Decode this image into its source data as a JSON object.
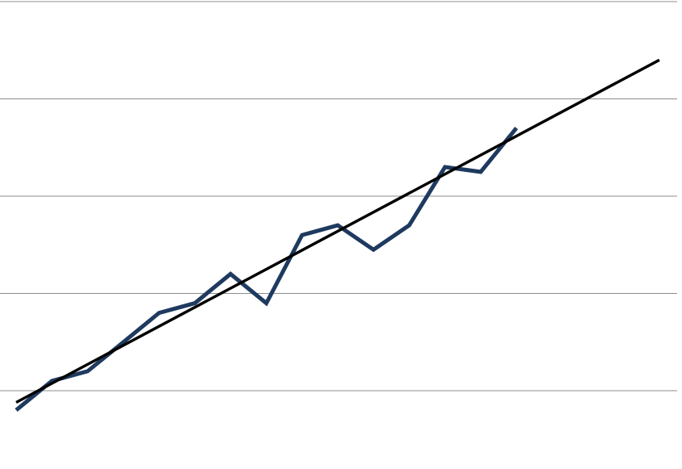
{
  "chart_data": {
    "type": "line",
    "title": "",
    "xlabel": "",
    "ylabel": "",
    "grid": true,
    "legend": "none",
    "xlim": [
      1,
      19
    ],
    "ylim": [
      -0.2,
      4.2
    ],
    "yticks": [
      0,
      1,
      2,
      3,
      4
    ],
    "series": [
      {
        "role": "data",
        "color": "#1f3a5f",
        "x": [
          1,
          2,
          3,
          4,
          5,
          6,
          7,
          8,
          9,
          10,
          11,
          12,
          13,
          14,
          15
        ],
        "y": [
          -0.2,
          0.1,
          0.2,
          0.5,
          0.8,
          0.9,
          1.2,
          0.9,
          1.6,
          1.7,
          1.45,
          1.7,
          2.3,
          2.25,
          2.7
        ]
      },
      {
        "role": "trend",
        "color": "#000000",
        "x": [
          1,
          19
        ],
        "y": [
          -0.12,
          3.4
        ]
      }
    ]
  }
}
